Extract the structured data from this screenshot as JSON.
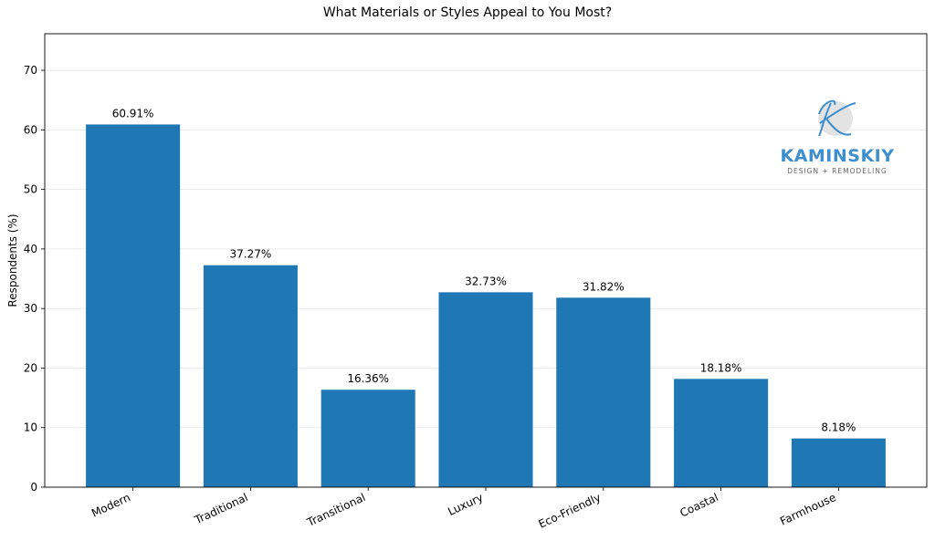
{
  "chart_data": {
    "type": "bar",
    "title": "What Materials or Styles Appeal to You Most?",
    "xlabel": "",
    "ylabel": "Respondents (%)",
    "categories": [
      "Modern",
      "Traditional",
      "Transitional",
      "Luxury",
      "Eco-Friendly",
      "Coastal",
      "Farmhouse"
    ],
    "values": [
      60.91,
      37.27,
      16.36,
      32.73,
      31.82,
      18.18,
      8.18
    ],
    "data_labels": [
      "60.91%",
      "37.27%",
      "16.36%",
      "32.73%",
      "31.82%",
      "18.18%",
      "8.18%"
    ],
    "ylim": [
      0,
      76.14
    ],
    "yticks": [
      0,
      10,
      20,
      30,
      40,
      50,
      60,
      70
    ],
    "grid": true,
    "bar_color": "#1f77b4"
  },
  "logo": {
    "brand": "KAMINSKIY",
    "tagline": "DESIGN + REMODELING",
    "color": "#3d8fd0"
  }
}
